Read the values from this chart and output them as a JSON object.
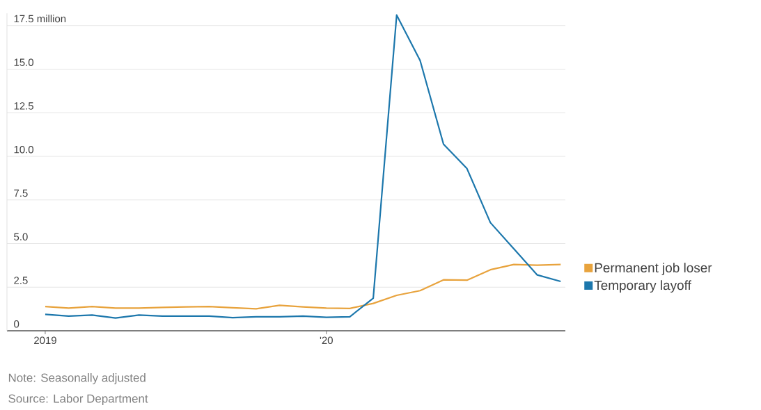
{
  "chart_data": {
    "type": "line",
    "x": [
      "2019-01",
      "2019-02",
      "2019-03",
      "2019-04",
      "2019-05",
      "2019-06",
      "2019-07",
      "2019-08",
      "2019-09",
      "2019-10",
      "2019-11",
      "2019-12",
      "2020-01",
      "2020-02",
      "2020-03",
      "2020-04",
      "2020-05",
      "2020-06",
      "2020-07",
      "2020-08",
      "2020-09",
      "2020-10",
      "2020-11"
    ],
    "series": [
      {
        "name": "Permanent job loser",
        "color": "#e8a33d",
        "values": [
          1.39,
          1.3,
          1.39,
          1.3,
          1.3,
          1.34,
          1.37,
          1.39,
          1.32,
          1.26,
          1.46,
          1.37,
          1.3,
          1.28,
          1.57,
          2.03,
          2.3,
          2.92,
          2.9,
          3.5,
          3.8,
          3.76,
          3.8
        ]
      },
      {
        "name": "Temporary layoff",
        "color": "#1c77ac",
        "values": [
          0.94,
          0.84,
          0.9,
          0.73,
          0.9,
          0.84,
          0.84,
          0.84,
          0.75,
          0.8,
          0.8,
          0.84,
          0.77,
          0.8,
          1.87,
          18.1,
          15.5,
          10.7,
          9.3,
          6.2,
          4.7,
          3.2,
          2.83
        ]
      }
    ],
    "xlim": [
      "2018-11-12",
      "2020-11-07"
    ],
    "xticks": [
      {
        "value": "2019-01",
        "label": "2019"
      },
      {
        "value": "2020-01",
        "label": "'20"
      }
    ],
    "ylim": [
      0,
      18.2
    ],
    "yticks": [
      {
        "value": 0,
        "label": "0"
      },
      2.5,
      {
        "value": 5,
        "label": "5.0"
      },
      7.5,
      {
        "value": 10,
        "label": "10.0"
      },
      12.5,
      {
        "value": 15,
        "label": "15.0"
      },
      {
        "value": 17.5,
        "label": "17.5 million"
      }
    ],
    "grid": "y",
    "legend": "right",
    "marker": "none",
    "line_style": "solid",
    "annotations": [
      "Note: Seasonally adjusted",
      "Source: Labor Department"
    ]
  }
}
